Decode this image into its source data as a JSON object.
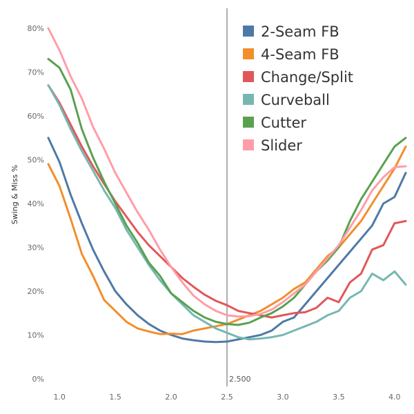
{
  "chart_data": {
    "type": "line",
    "title": "",
    "xlabel": "",
    "ylabel": "Swing & Miss %",
    "xlim": [
      0.9,
      4.1
    ],
    "ylim": [
      0,
      80
    ],
    "x_ticks": [
      "1.0",
      "1.5",
      "2.0",
      "2.5",
      "3.0",
      "3.5",
      "4.0"
    ],
    "y_ticks": [
      "0%",
      "10%",
      "20%",
      "30%",
      "40%",
      "50%",
      "60%",
      "70%",
      "80%"
    ],
    "x_tick_values": [
      1.0,
      1.5,
      2.0,
      2.5,
      3.0,
      3.5,
      4.0
    ],
    "y_tick_values": [
      0,
      10,
      20,
      30,
      40,
      50,
      60,
      70,
      80
    ],
    "grid": false,
    "legend_position": "top-right",
    "reference_line": {
      "x": 2.5,
      "label": "2.500",
      "color": "#999999"
    },
    "x": [
      0.9,
      1.0,
      1.1,
      1.2,
      1.3,
      1.4,
      1.5,
      1.6,
      1.7,
      1.8,
      1.9,
      2.0,
      2.1,
      2.2,
      2.3,
      2.4,
      2.5,
      2.6,
      2.7,
      2.8,
      2.9,
      3.0,
      3.1,
      3.2,
      3.3,
      3.4,
      3.5,
      3.6,
      3.7,
      3.8,
      3.9,
      4.0,
      4.1
    ],
    "series": [
      {
        "name": "2-Seam FB",
        "color": "#4e79a7",
        "values": [
          55,
          49.5,
          42,
          35.5,
          29.5,
          24.5,
          20,
          17,
          14.5,
          12.5,
          11,
          10,
          9.2,
          8.8,
          8.5,
          8.4,
          8.5,
          9,
          9.5,
          10,
          11,
          13,
          14,
          17,
          20,
          23,
          26,
          29,
          32,
          35,
          40,
          41.5,
          47
        ]
      },
      {
        "name": "4-Seam FB",
        "color": "#f28e2b",
        "values": [
          49,
          44,
          36.5,
          28.5,
          23.5,
          18,
          15.5,
          13,
          11.5,
          10.8,
          10.2,
          10.3,
          10.2,
          11,
          11.5,
          12,
          12.5,
          13.5,
          14.5,
          15.5,
          17,
          18.5,
          20.5,
          22,
          25,
          28,
          30,
          33,
          36,
          40,
          44,
          48,
          53
        ]
      },
      {
        "name": "Change/Split",
        "color": "#e15759",
        "values": [
          67,
          63,
          58,
          53,
          48.5,
          44.5,
          40.5,
          37,
          33.5,
          30.5,
          28,
          25.5,
          23,
          21,
          19.2,
          17.8,
          16.8,
          15.5,
          15,
          14.5,
          14,
          14.5,
          15,
          15.2,
          16.2,
          18.5,
          17.5,
          22,
          24,
          29.5,
          30.5,
          35.5,
          36
        ]
      },
      {
        "name": "Curveball",
        "color": "#76b7b2",
        "values": [
          67,
          62.5,
          57,
          52,
          47.5,
          43,
          39,
          34,
          30,
          26,
          22.5,
          19.5,
          17,
          14.5,
          13,
          11.5,
          10.5,
          9.5,
          9,
          9.2,
          9.5,
          10,
          11,
          12,
          13,
          14.5,
          15.5,
          18.5,
          20,
          24,
          22.5,
          24.5,
          21.5
        ]
      },
      {
        "name": "Cutter",
        "color": "#59a14f",
        "values": [
          73,
          71,
          66,
          57,
          50.5,
          45,
          40,
          35,
          31,
          26.5,
          23.5,
          19.5,
          17.5,
          15.5,
          14,
          13,
          12.5,
          12.3,
          12.8,
          14,
          15,
          16.5,
          18.5,
          21.5,
          24.5,
          27,
          30,
          36,
          41,
          45,
          49,
          53,
          55
        ]
      },
      {
        "name": "Slider",
        "color": "#ff9da7",
        "values": [
          80,
          75,
          69,
          64,
          57.5,
          52.5,
          47,
          42.5,
          38,
          34,
          29.5,
          25.5,
          22,
          19,
          17,
          15.5,
          14.5,
          14.2,
          14.3,
          14.8,
          15.8,
          17.5,
          19.5,
          21.5,
          24.5,
          27.5,
          30.5,
          34.5,
          38.5,
          43,
          46,
          48.3,
          48.5
        ]
      }
    ]
  }
}
